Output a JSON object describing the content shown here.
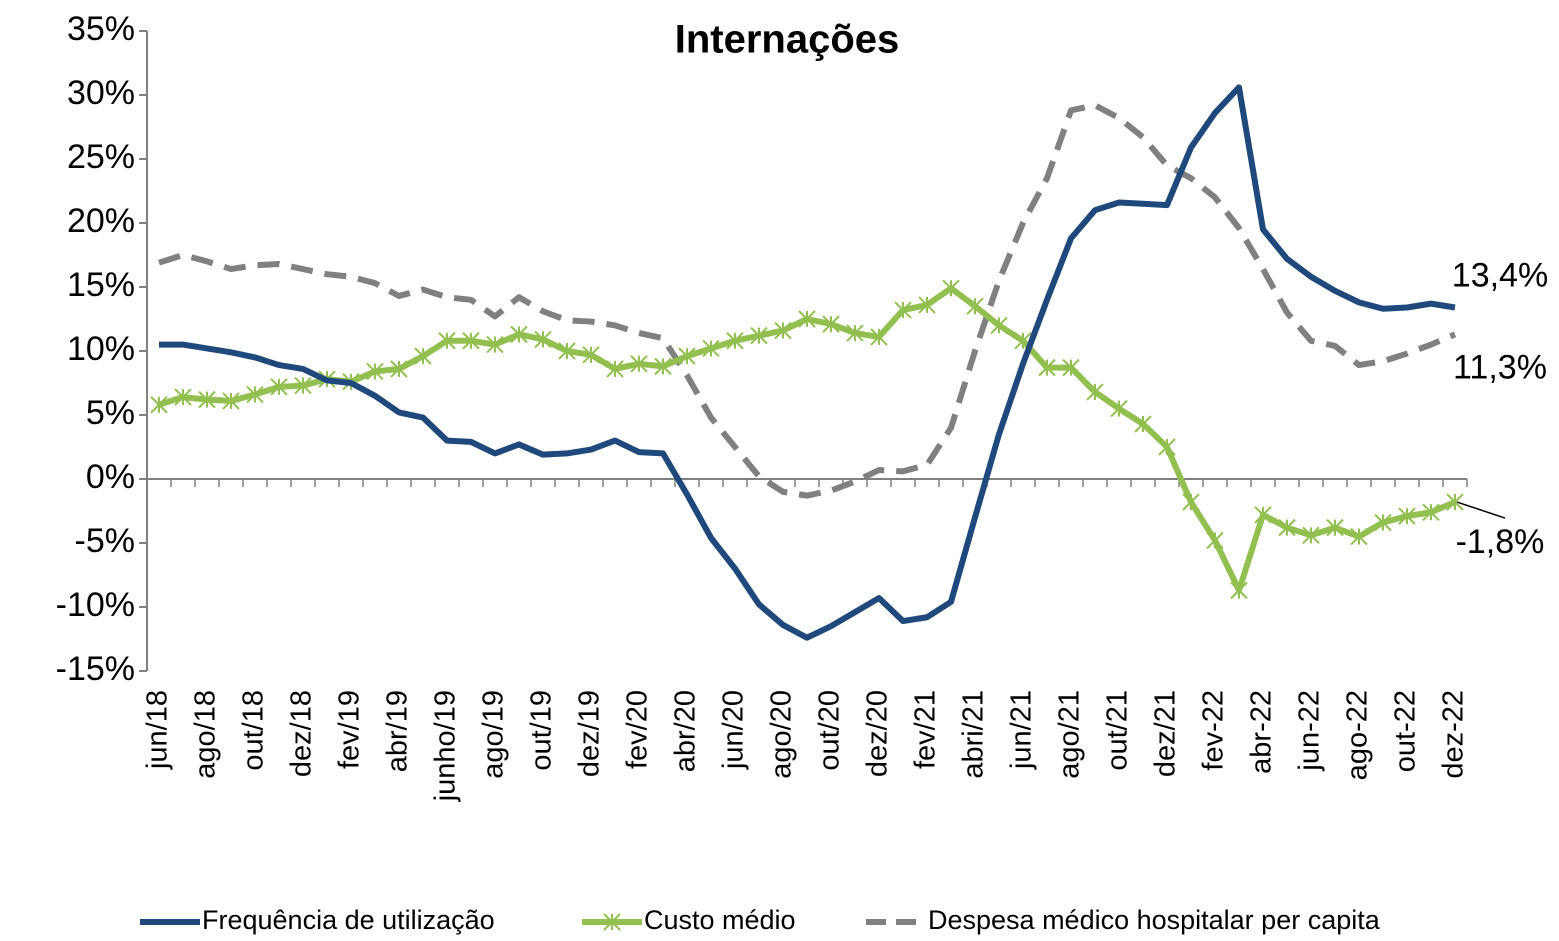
{
  "chart_data": {
    "type": "line",
    "title": "Internações",
    "categories": [
      "jun/18",
      null,
      "ago/18",
      null,
      "out/18",
      null,
      "dez/18",
      null,
      "fev/19",
      null,
      "abr/19",
      null,
      "junho/19",
      null,
      "ago/19",
      null,
      "out/19",
      null,
      "dez/19",
      null,
      "fev/20",
      null,
      "abr/20",
      null,
      "jun/20",
      null,
      "ago/20",
      null,
      "out/20",
      null,
      "dez/20",
      null,
      "fev/21",
      null,
      "abri/21",
      null,
      "jun/21",
      null,
      "ago/21",
      null,
      "out/21",
      null,
      "dez/21",
      null,
      "fev-22",
      null,
      "abr-22",
      null,
      "jun-22",
      null,
      "ago-22",
      null,
      "out-22",
      null,
      "dez-22"
    ],
    "ylim": [
      -15,
      35
    ],
    "yticks": [
      {
        "value": -15,
        "label": "-15%"
      },
      {
        "value": -10,
        "label": "-10%"
      },
      {
        "value": -5,
        "label": "-5%"
      },
      {
        "value": 0,
        "label": "0%"
      },
      {
        "value": 5,
        "label": "5%"
      },
      {
        "value": 10,
        "label": "10%"
      },
      {
        "value": 15,
        "label": "15%"
      },
      {
        "value": 20,
        "label": "20%"
      },
      {
        "value": 25,
        "label": "25%"
      },
      {
        "value": 30,
        "label": "30%"
      },
      {
        "value": 35,
        "label": "35%"
      }
    ],
    "grid": false,
    "legend": "bottom",
    "series": [
      {
        "name": "Frequência de utilização",
        "color": "#1f497d",
        "style": "solid",
        "marker": "none",
        "end_label": "13,4%",
        "values": [
          10.5,
          10.5,
          10.2,
          9.9,
          9.5,
          8.9,
          8.6,
          7.7,
          7.5,
          6.5,
          5.2,
          4.8,
          3.0,
          2.9,
          2.0,
          2.7,
          1.9,
          2.0,
          2.3,
          3.0,
          2.1,
          2.0,
          -1.2,
          -4.6,
          -7.0,
          -9.8,
          -11.4,
          -12.4,
          -11.5,
          -10.4,
          -9.3,
          -11.1,
          -10.8,
          -9.6,
          -3.0,
          3.5,
          9.0,
          14.0,
          18.8,
          21.0,
          21.6,
          21.5,
          21.4,
          25.9,
          28.6,
          30.6,
          19.5,
          17.2,
          15.8,
          14.7,
          13.8,
          13.3,
          13.4,
          13.7,
          13.4
        ]
      },
      {
        "name": "Custo médio",
        "color": "#92c050",
        "style": "solid",
        "marker": "star",
        "end_label": "-1,8%",
        "values": [
          5.8,
          6.4,
          6.2,
          6.1,
          6.6,
          7.2,
          7.3,
          7.8,
          7.6,
          8.4,
          8.6,
          9.6,
          10.8,
          10.8,
          10.5,
          11.3,
          10.9,
          10.0,
          9.7,
          8.6,
          9.0,
          8.8,
          9.6,
          10.2,
          10.8,
          11.2,
          11.6,
          12.5,
          12.1,
          11.4,
          11.1,
          13.2,
          13.6,
          14.9,
          13.5,
          12.0,
          10.8,
          8.7,
          8.7,
          6.8,
          5.5,
          4.3,
          2.5,
          -1.8,
          -4.8,
          -8.7,
          -2.8,
          -3.8,
          -4.4,
          -3.8,
          -4.5,
          -3.4,
          -2.9,
          -2.6,
          -1.8
        ]
      },
      {
        "name": "Despesa médico hospitalar per capita",
        "color": "#808080",
        "style": "dashed",
        "marker": "none",
        "end_label": "11,3%",
        "values": [
          16.9,
          17.5,
          17.0,
          16.4,
          16.7,
          16.8,
          16.4,
          16.0,
          15.8,
          15.3,
          14.3,
          14.8,
          14.2,
          14.0,
          12.7,
          14.2,
          13.1,
          12.4,
          12.3,
          12.0,
          11.4,
          11.0,
          8.1,
          4.8,
          2.5,
          0.2,
          -1.0,
          -1.3,
          -0.9,
          -0.2,
          0.7,
          0.6,
          1.1,
          4.0,
          10.0,
          15.5,
          20.0,
          23.5,
          28.8,
          29.2,
          28.2,
          26.7,
          24.5,
          23.5,
          22.0,
          19.6,
          16.4,
          13.0,
          10.8,
          10.4,
          8.9,
          9.2,
          9.8,
          10.5,
          11.3
        ]
      }
    ]
  }
}
